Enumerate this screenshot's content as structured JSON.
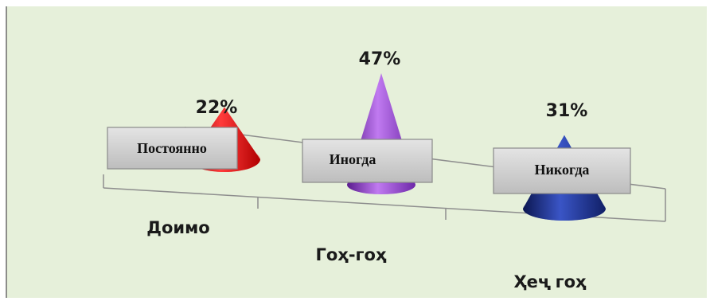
{
  "chart_data": {
    "type": "bar",
    "shape": "cone",
    "categories": [
      "Доимо",
      "Гоҳ-гоҳ",
      "Ҳеҷ гоҳ"
    ],
    "values": [
      22,
      47,
      31
    ],
    "value_labels": [
      "22%",
      "47%",
      "31%"
    ],
    "unit": "%",
    "overlay_labels": [
      "Постоянно",
      "Иногда",
      "Никогда"
    ],
    "colors": [
      "#ee1c1c",
      "#9a3fd6",
      "#1c2f8a"
    ],
    "background": "#e6f0da",
    "grid": false,
    "legend": "none",
    "title": "",
    "xlabel": "",
    "ylabel": ""
  }
}
